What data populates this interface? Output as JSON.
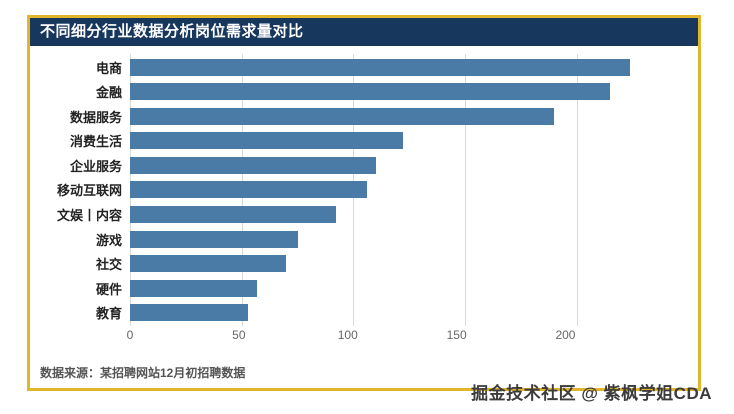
{
  "title": "不同细分行业数据分析岗位需求量对比",
  "footer": {
    "source": "数据来源：某招聘网站12月初招聘数据",
    "watermark": "掘金技术社区 @ 紫枫学姐CDA"
  },
  "colors": {
    "bar": "#4a7ba7",
    "title_bg": "#17375d",
    "card_border": "#e2b62c",
    "gridline": "#d9d9d9"
  },
  "chart_data": {
    "type": "bar",
    "orientation": "horizontal",
    "title": "不同细分行业数据分析岗位需求量对比",
    "categories": [
      "电商",
      "金融",
      "数据服务",
      "消费生活",
      "企业服务",
      "移动互联网",
      "文娱丨内容",
      "游戏",
      "社交",
      "硬件",
      "教育"
    ],
    "values": [
      224,
      215,
      190,
      122,
      110,
      106,
      92,
      75,
      70,
      57,
      53
    ],
    "x_ticks": [
      0,
      50,
      100,
      150,
      200
    ],
    "xlim": [
      0,
      248
    ],
    "xlabel": "",
    "ylabel": "",
    "grid": true,
    "legend": false
  }
}
